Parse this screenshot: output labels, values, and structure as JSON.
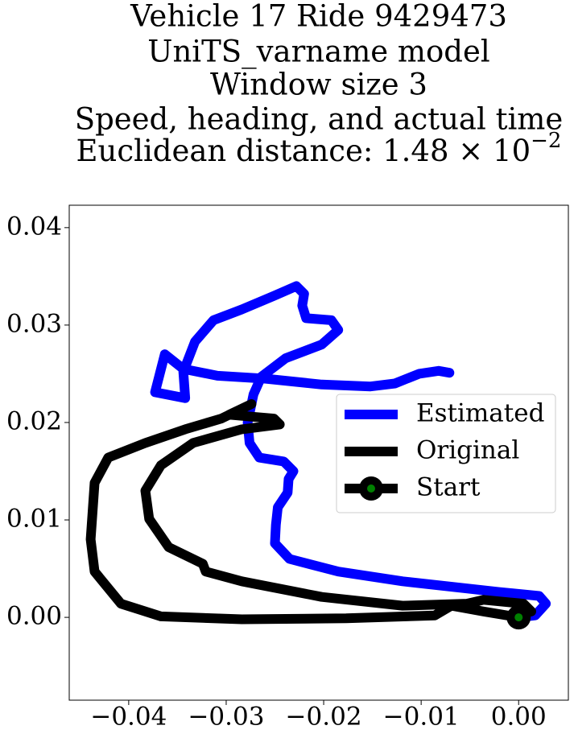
{
  "chart_data": {
    "type": "line",
    "title_lines": [
      "Vehicle 17 Ride 9429473",
      "UniTS_varname model",
      "Window size 3",
      "Speed, heading, and actual time"
    ],
    "title_last_line": "Euclidean distance: 1.48 × 10",
    "title_exponent": "−2",
    "xlim": [
      -0.0461,
      0.0051
    ],
    "ylim": [
      -0.0085,
      0.0423
    ],
    "xticks": [
      {
        "value": -0.04,
        "label": "−0.04"
      },
      {
        "value": -0.03,
        "label": "−0.03"
      },
      {
        "value": -0.02,
        "label": "−0.02"
      },
      {
        "value": -0.01,
        "label": "−0.01"
      },
      {
        "value": 0,
        "label": "0.00"
      }
    ],
    "yticks": [
      {
        "value": 0,
        "label": "0.00"
      },
      {
        "value": 0.01,
        "label": "0.01"
      },
      {
        "value": 0.02,
        "label": "0.02"
      },
      {
        "value": 0.03,
        "label": "0.03"
      },
      {
        "value": 0.04,
        "label": "0.04"
      }
    ],
    "legend": "center right",
    "series": [
      {
        "name": "Estimated",
        "color": "#0000ff",
        "x": [
          0,
          0.0017,
          0.0028,
          0.0021,
          -0.002,
          -0.0119,
          -0.0185,
          -0.0235,
          -0.025,
          -0.0249,
          -0.0247,
          -0.0237,
          -0.0236,
          -0.0231,
          -0.0241,
          -0.0266,
          -0.0276,
          -0.0278,
          -0.0272,
          -0.0264,
          -0.0239,
          -0.0202,
          -0.0185,
          -0.0192,
          -0.0218,
          -0.0222,
          -0.022,
          -0.0228,
          -0.0251,
          -0.0284,
          -0.0313,
          -0.0332,
          -0.0344,
          -0.0342,
          -0.0373,
          -0.0363,
          -0.0344,
          -0.0309,
          -0.026,
          -0.0202,
          -0.0152,
          -0.0127,
          -0.0102,
          -0.0082,
          -0.0071
        ],
        "values": [
          0,
          0.0002,
          0.0014,
          0.0022,
          0.0026,
          0.0037,
          0.0047,
          0.006,
          0.0076,
          0.0095,
          0.0113,
          0.0128,
          0.0142,
          0.015,
          0.016,
          0.0164,
          0.0179,
          0.02,
          0.0229,
          0.0247,
          0.0266,
          0.028,
          0.0295,
          0.0305,
          0.0307,
          0.032,
          0.0332,
          0.034,
          0.033,
          0.0316,
          0.0305,
          0.0283,
          0.0252,
          0.0225,
          0.0231,
          0.027,
          0.0255,
          0.0248,
          0.0245,
          0.0239,
          0.0237,
          0.024,
          0.025,
          0.0253,
          0.0251
        ]
      },
      {
        "name": "Original",
        "color": "#000000",
        "x": [
          0,
          -0.0036,
          -0.0069,
          -0.0086,
          -0.0177,
          -0.0284,
          -0.0367,
          -0.0408,
          -0.0435,
          -0.0439,
          -0.0435,
          -0.0421,
          -0.0383,
          -0.0342,
          -0.0305,
          -0.0274,
          -0.0297,
          -0.0251,
          -0.0245,
          -0.0284,
          -0.0334,
          -0.0367,
          -0.0383,
          -0.0379,
          -0.0359,
          -0.0324,
          -0.0321,
          -0.0284,
          -0.0202,
          -0.0119,
          -0.0053,
          -0.0036,
          0.0005,
          0.0013,
          -0.0003
        ],
        "values": [
          0,
          0.0006,
          0.0012,
          0.0002,
          -0.0001,
          -0.0002,
          0.0001,
          0.0014,
          0.0047,
          0.008,
          0.0138,
          0.0164,
          0.0179,
          0.0193,
          0.0204,
          0.0219,
          0.0208,
          0.0204,
          0.0198,
          0.0193,
          0.0179,
          0.0156,
          0.013,
          0.0101,
          0.0072,
          0.0055,
          0.0047,
          0.0037,
          0.0021,
          0.0012,
          0.0014,
          0.0018,
          0.0014,
          0.0006,
          0.0002
        ]
      },
      {
        "name": "Start",
        "color": "#008000",
        "x": [
          0
        ],
        "values": [
          0
        ]
      }
    ]
  }
}
